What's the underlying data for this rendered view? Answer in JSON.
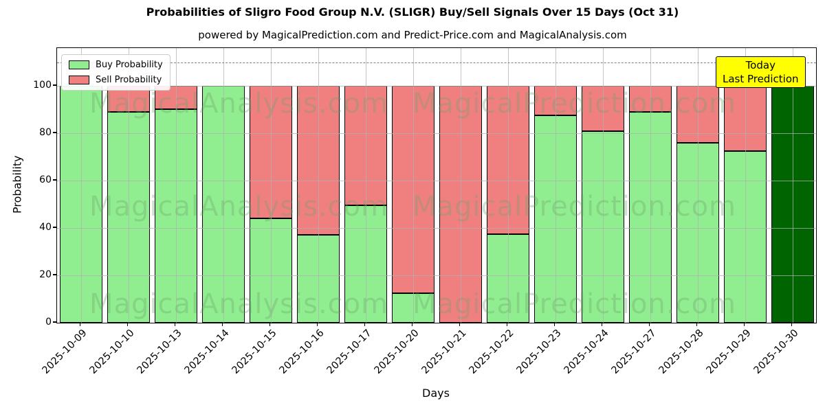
{
  "header": {
    "title": "Probabilities of Sligro Food Group N.V. (SLIGR) Buy/Sell Signals Over 15 Days (Oct 31)",
    "subtitle": "powered by MagicalPrediction.com and Predict-Price.com and MagicalAnalysis.com"
  },
  "legend": {
    "items": [
      {
        "label": "Buy Probability",
        "color": "#90ee90"
      },
      {
        "label": "Sell Probability",
        "color": "#f08080"
      }
    ]
  },
  "annotation": {
    "line1": "Today",
    "line2": "Last Prediction",
    "bg_color": "#ffff00"
  },
  "watermarks": {
    "left_text": "MagicalAnalysis.com",
    "right_text": "MagicalPrediction.com"
  },
  "colors": {
    "buy": "#90ee90",
    "sell": "#f08080",
    "today_bar": "#006400",
    "grid": "#b0b0b0",
    "dashed_line": "#7f7f7f"
  },
  "chart_data": {
    "type": "bar",
    "stacked": true,
    "title": "Probabilities of Sligro Food Group N.V. (SLIGR) Buy/Sell Signals Over 15 Days (Oct 31)",
    "xlabel": "Days",
    "ylabel": "Probability",
    "categories": [
      "2025-10-09",
      "2025-10-10",
      "2025-10-13",
      "2025-10-14",
      "2025-10-15",
      "2025-10-16",
      "2025-10-17",
      "2025-10-20",
      "2025-10-21",
      "2025-10-22",
      "2025-10-23",
      "2025-10-24",
      "2025-10-27",
      "2025-10-28",
      "2025-10-29",
      "2025-10-30"
    ],
    "series": [
      {
        "name": "Buy Probability",
        "color": "#90ee90",
        "values": [
          100,
          89,
          90,
          100,
          44,
          37,
          49.5,
          12.5,
          0,
          37.5,
          87.5,
          81,
          89,
          76,
          72.5,
          100
        ]
      },
      {
        "name": "Sell Probability",
        "color": "#f08080",
        "values": [
          0,
          11,
          10,
          0,
          56,
          63,
          50.5,
          87.5,
          100,
          62.5,
          12.5,
          19,
          11,
          24,
          27.5,
          0
        ]
      }
    ],
    "today_bar": {
      "index": 15,
      "color": "#006400"
    },
    "yticks": [
      0,
      20,
      40,
      60,
      80,
      100
    ],
    "ylim": [
      0,
      116
    ],
    "dashed_line_y": 110,
    "grid": true,
    "legend_position": "upper left"
  }
}
